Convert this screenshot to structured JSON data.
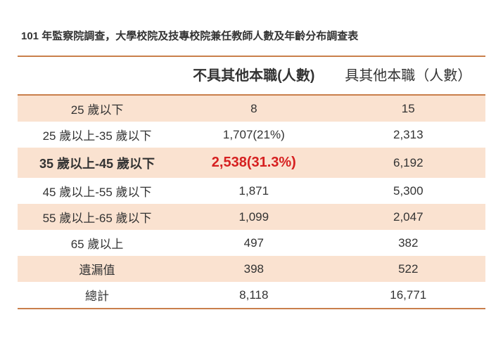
{
  "title": "101 年監察院調查，大學校院及技專校院兼任教師人數及年齡分布調查表",
  "table": {
    "columns": {
      "label": "",
      "col_a": "不具其他本職(人數)",
      "col_b": "具其他本職（人數）"
    },
    "rows": [
      {
        "label": "25 歲以下",
        "a": "8",
        "b": "15",
        "stripe": true
      },
      {
        "label": "25 歲以上-35 歲以下",
        "a": "1,707(21%)",
        "b": "2,313",
        "stripe": false
      },
      {
        "label": "35 歲以上-45 歲以下",
        "a": "2,538(31.3%)",
        "b": "6,192",
        "stripe": true,
        "highlight": true
      },
      {
        "label": "45 歲以上-55 歲以下",
        "a": "1,871",
        "b": "5,300",
        "stripe": false
      },
      {
        "label": "55 歲以上-65 歲以下",
        "a": "1,099",
        "b": "2,047",
        "stripe": true
      },
      {
        "label": "65 歲以上",
        "a": "497",
        "b": "382",
        "stripe": false
      },
      {
        "label": "遺漏值",
        "a": "398",
        "b": "522",
        "stripe": true
      },
      {
        "label": "總計",
        "a": "8,118",
        "b": "16,771",
        "stripe": false
      }
    ],
    "styling": {
      "stripe_color": "#fae2d0",
      "border_color": "#c97f4b",
      "background_color": "#ffffff",
      "text_color": "#333333",
      "highlight_color": "#d62020",
      "header_font_size_pt": 20,
      "body_font_size_pt": 17,
      "title_font_size_pt": 15,
      "highlight_font_size_pt": 20,
      "col_widths_pct": [
        34,
        33,
        33
      ]
    }
  }
}
